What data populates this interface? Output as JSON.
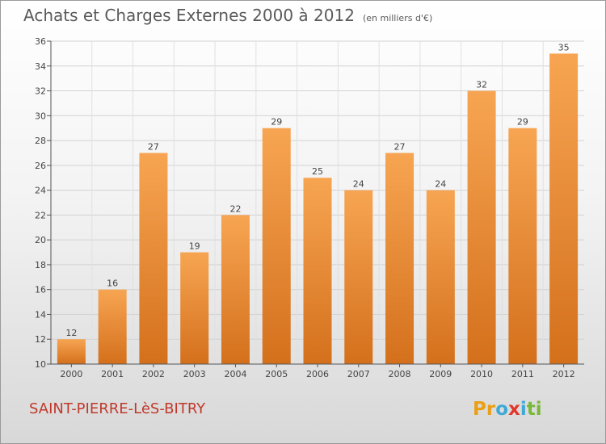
{
  "title": "Achats et Charges Externes 2000 à 2012",
  "unit_note": "(en milliers d'€)",
  "commune": "SAINT-PIERRE-LèS-BITRY",
  "logo": {
    "text": "Proxiti",
    "letter_colors": [
      "#e8a016",
      "#e8a016",
      "#3fa9d6",
      "#e2362b",
      "#3fa9d6",
      "#78b83a",
      "#78b83a"
    ]
  },
  "colors": {
    "bar_top": "#f7a552",
    "bar_bottom": "#d4701c",
    "text": "#5a5a5a",
    "commune": "#c0392b"
  },
  "chart_data": {
    "type": "bar",
    "title": "Achats et Charges Externes 2000 à 2012",
    "xlabel": "",
    "ylabel": "",
    "categories": [
      "2000",
      "2001",
      "2002",
      "2003",
      "2004",
      "2005",
      "2006",
      "2007",
      "2008",
      "2009",
      "2010",
      "2011",
      "2012"
    ],
    "values": [
      12,
      16,
      27,
      19,
      22,
      29,
      25,
      24,
      27,
      24,
      32,
      29,
      35
    ],
    "ylim": [
      10,
      36
    ],
    "yticks": [
      10,
      12,
      14,
      16,
      18,
      20,
      22,
      24,
      26,
      28,
      30,
      32,
      34,
      36
    ],
    "grid": true,
    "data_labels": true
  }
}
